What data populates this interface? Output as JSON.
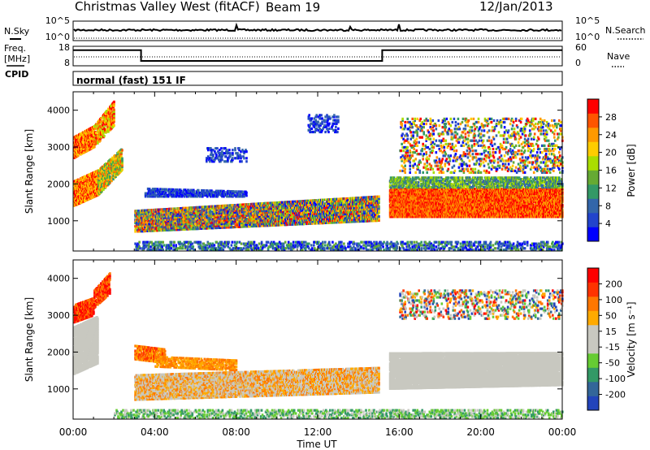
{
  "header": {
    "station": "Christmas Valley West (fitACF)",
    "beam": "Beam 19",
    "date": "12/Jan/2013"
  },
  "side_labels": {
    "nsky": "N.Sky",
    "nsearch": "N.Search",
    "freq_line1": "Freq.",
    "freq_line2": "[MHz]",
    "nave": "Nave",
    "cpid": "CPID",
    "cpid_text": "normal (fast) 151 IF"
  },
  "chart_data": [
    {
      "type": "line",
      "panel": "noise",
      "left_ticks": [
        "10^5",
        "10^0"
      ],
      "right_ticks": [
        "10^5",
        "10^0"
      ],
      "series": [
        {
          "name": "N.Sky",
          "style": "solid"
        },
        {
          "name": "N.Search",
          "style": "dotted"
        }
      ]
    },
    {
      "type": "line",
      "panel": "frequency",
      "left_ticks": [
        "18",
        "8"
      ],
      "right_ticks": [
        "60",
        "0"
      ],
      "freq_mhz": {
        "x": [
          "00:00",
          "03:20",
          "03:20",
          "15:10",
          "15:10",
          "24:00"
        ],
        "y": [
          16,
          16,
          10.5,
          10.5,
          16,
          16
        ]
      },
      "nave_level": 17
    },
    {
      "type": "heatmap",
      "panel": "power",
      "ylabel": "Slant Range [km]",
      "yticks": [
        "1000",
        "2000",
        "3000",
        "4000"
      ],
      "ylim": [
        180,
        4500
      ],
      "colorbar_label": "Power [dB]",
      "colorbar_ticks": [
        "4",
        "8",
        "12",
        "16",
        "20",
        "24",
        "28"
      ],
      "colors": [
        "#0000ff",
        "#2244cc",
        "#3366aa",
        "#339966",
        "#66aa33",
        "#aadd00",
        "#ffcc00",
        "#ff9900",
        "#ff5500",
        "#ff0000"
      ]
    },
    {
      "type": "heatmap",
      "panel": "velocity",
      "ylabel": "Slant Range [km]",
      "yticks": [
        "1000",
        "2000",
        "3000",
        "4000"
      ],
      "ylim": [
        180,
        4500
      ],
      "colorbar_label": "Velocity [m s⁻¹]",
      "colorbar_ticks": [
        "200",
        "100",
        "50",
        "15",
        "-15",
        "-50",
        "-100",
        "-200"
      ],
      "colors": [
        "#2244bb",
        "#336699",
        "#339966",
        "#66cc33",
        "#c8c8c0",
        "#c8c8c0",
        "#ffaa00",
        "#ff7700",
        "#ff3300",
        "#ff0000"
      ]
    }
  ],
  "xaxis": {
    "label": "Time UT",
    "ticks": [
      "00:00",
      "04:00",
      "08:00",
      "12:00",
      "16:00",
      "20:00",
      "00:00"
    ]
  }
}
